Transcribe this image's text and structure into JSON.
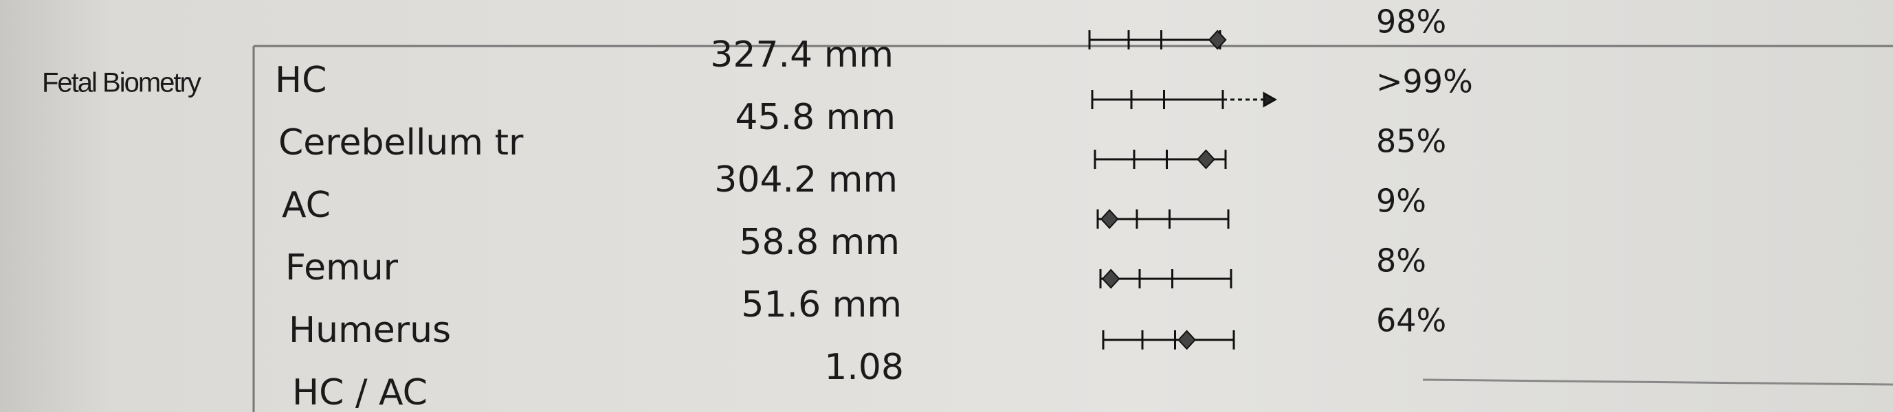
{
  "section": "Fetal Biometry",
  "rows": [
    {
      "name": "HC",
      "value": "327.4 mm",
      "percentile": {
        "value": 98,
        "label": "98%"
      }
    },
    {
      "name": "Cerebellum tr",
      "value": "45.8 mm",
      "percentile": {
        "value": 99,
        "label": ">99%"
      }
    },
    {
      "name": "AC",
      "value": "304.2 mm",
      "percentile": {
        "value": 85,
        "label": "85%"
      }
    },
    {
      "name": "Femur",
      "value": "58.8 mm",
      "percentile": {
        "value": 9,
        "label": "9%"
      }
    },
    {
      "name": "Humerus",
      "value": "51.6 mm",
      "percentile": {
        "value": 8,
        "label": "8%"
      }
    },
    {
      "name": "HC / AC",
      "value": "1.08",
      "percentile": {
        "value": 64,
        "label": "64%"
      }
    }
  ]
}
